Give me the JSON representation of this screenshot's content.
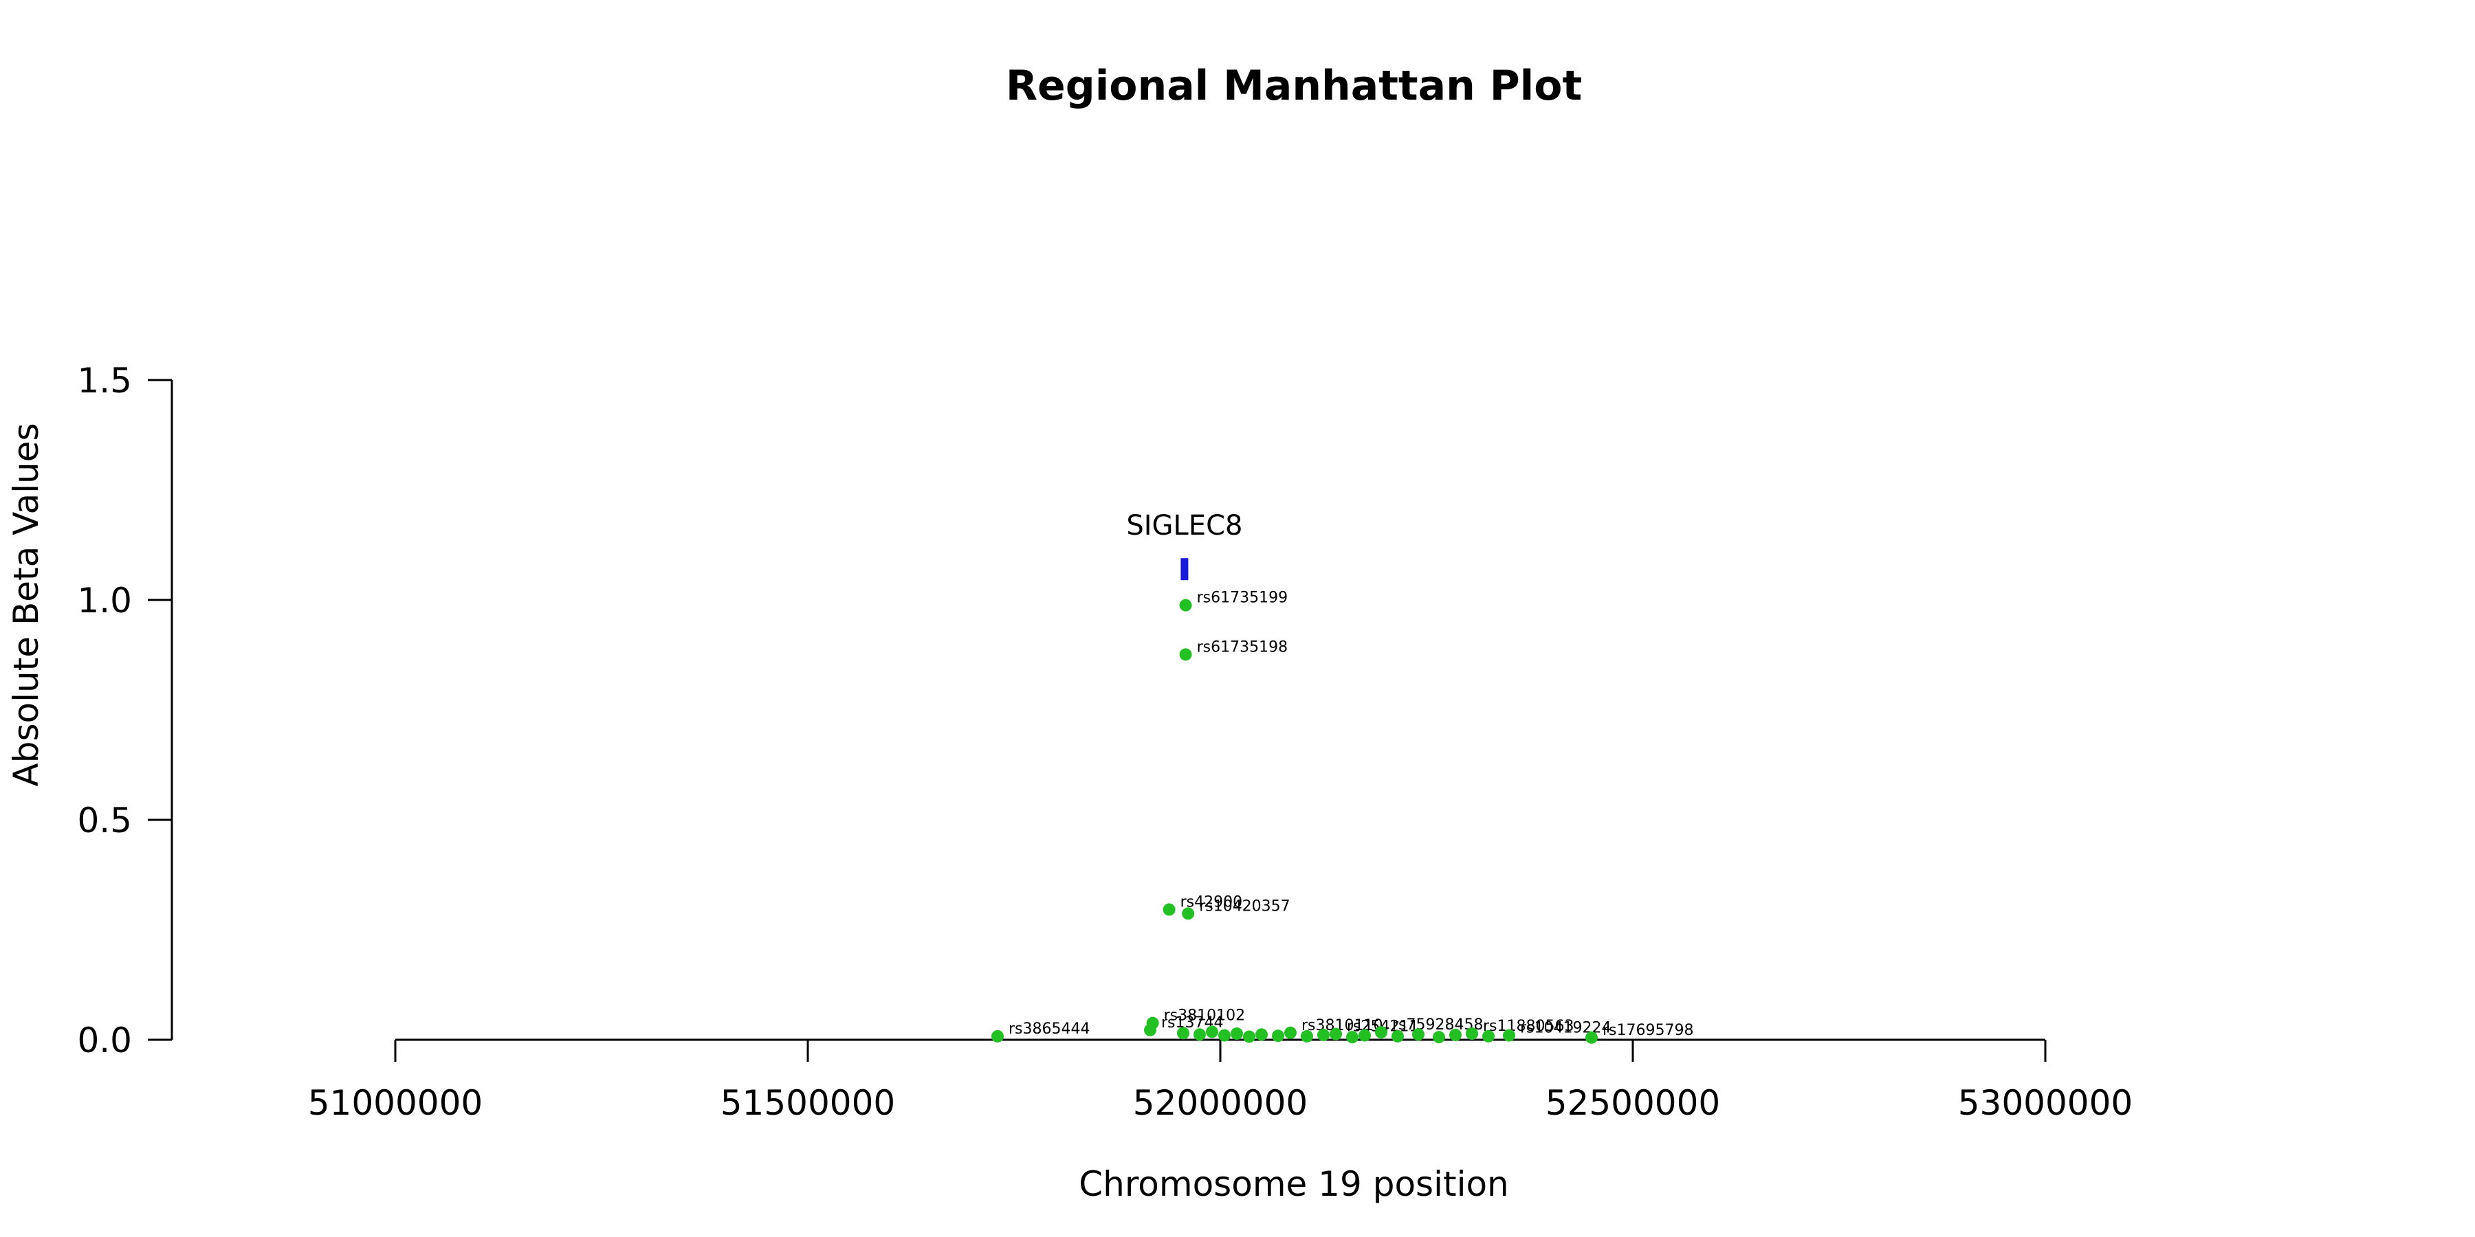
{
  "chart_data": {
    "type": "scatter",
    "title": "Regional Manhattan Plot",
    "xlabel": "Chromosome 19 position",
    "ylabel": "Absolute Beta Values",
    "xlim": [
      51000000,
      53000000
    ],
    "ylim": [
      0,
      1.5
    ],
    "x_ticks": [
      51000000,
      51500000,
      52000000,
      52500000,
      53000000
    ],
    "y_ticks": [
      0.0,
      0.5,
      1.0,
      1.5
    ],
    "x_tick_labels": [
      "51000000",
      "51500000",
      "52000000",
      "52500000",
      "53000000"
    ],
    "y_tick_labels": [
      "0.0",
      "0.5",
      "1.0",
      "1.5"
    ],
    "point_color": "#22c022",
    "gene_color": "#1a1adc",
    "gene": {
      "name": "SIGLEC8",
      "start": 51952000,
      "end": 51961000,
      "y_low": 1.045,
      "y_high": 1.095
    },
    "points": [
      {
        "x": 51958000,
        "y": 0.988,
        "label": "rs61735199"
      },
      {
        "x": 51958000,
        "y": 0.876,
        "label": "rs61735198"
      },
      {
        "x": 51938000,
        "y": 0.296,
        "label": "rs42900"
      },
      {
        "x": 51961000,
        "y": 0.287,
        "label": "rs10420357"
      },
      {
        "x": 51918000,
        "y": 0.038,
        "label": "rs3810102"
      },
      {
        "x": 51915000,
        "y": 0.022,
        "label": "rs13744"
      },
      {
        "x": 51730000,
        "y": 0.008,
        "label": "rs3865444"
      },
      {
        "x": 51955000,
        "y": 0.015,
        "label": ""
      },
      {
        "x": 51975000,
        "y": 0.012,
        "label": ""
      },
      {
        "x": 51990000,
        "y": 0.018,
        "label": ""
      },
      {
        "x": 52005000,
        "y": 0.01,
        "label": ""
      },
      {
        "x": 52020000,
        "y": 0.014,
        "label": ""
      },
      {
        "x": 52035000,
        "y": 0.007,
        "label": ""
      },
      {
        "x": 52050000,
        "y": 0.012,
        "label": ""
      },
      {
        "x": 52070000,
        "y": 0.009,
        "label": ""
      },
      {
        "x": 52085000,
        "y": 0.016,
        "label": "rs3810110"
      },
      {
        "x": 52105000,
        "y": 0.008,
        "label": ""
      },
      {
        "x": 52125000,
        "y": 0.011,
        "label": ""
      },
      {
        "x": 52140000,
        "y": 0.013,
        "label": "rs254211"
      },
      {
        "x": 52160000,
        "y": 0.006,
        "label": ""
      },
      {
        "x": 52175000,
        "y": 0.01,
        "label": ""
      },
      {
        "x": 52195000,
        "y": 0.017,
        "label": "rs75928458"
      },
      {
        "x": 52215000,
        "y": 0.008,
        "label": ""
      },
      {
        "x": 52240000,
        "y": 0.012,
        "label": ""
      },
      {
        "x": 52265000,
        "y": 0.006,
        "label": ""
      },
      {
        "x": 52285000,
        "y": 0.011,
        "label": ""
      },
      {
        "x": 52305000,
        "y": 0.014,
        "label": "rs11880563"
      },
      {
        "x": 52325000,
        "y": 0.008,
        "label": ""
      },
      {
        "x": 52350000,
        "y": 0.01,
        "label": "rs10419224"
      },
      {
        "x": 52450000,
        "y": 0.005,
        "label": "rs17695798"
      }
    ]
  }
}
